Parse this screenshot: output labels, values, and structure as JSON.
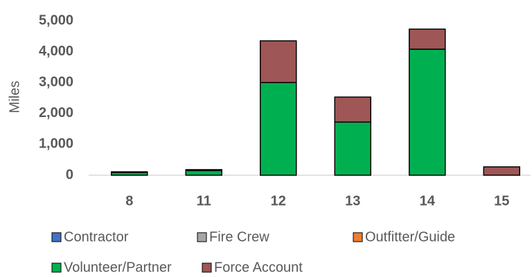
{
  "chart_data": {
    "type": "stacked_bar",
    "y_label": "Miles",
    "categories": [
      "8",
      "11",
      "12",
      "13",
      "14",
      "15"
    ],
    "series": [
      {
        "name": "Contractor",
        "color": "#4472c4",
        "values": [
          0,
          0,
          0,
          0,
          0,
          0
        ]
      },
      {
        "name": "Fire Crew",
        "color": "#a5a5a5",
        "values": [
          0,
          0,
          0,
          0,
          0,
          0
        ]
      },
      {
        "name": "Outfitter/Guide",
        "color": "#ed7d31",
        "values": [
          0,
          0,
          0,
          0,
          0,
          0
        ]
      },
      {
        "name": "Volunteer/Partner",
        "color": "#00b050",
        "values": [
          90,
          150,
          3000,
          1720,
          4080,
          0
        ]
      },
      {
        "name": "Force Account",
        "color": "#9e5656",
        "values": [
          20,
          30,
          1350,
          810,
          650,
          270
        ]
      }
    ],
    "ylim": [
      0,
      5000
    ],
    "yticks": [
      0,
      {
        "value": 1000,
        "label": "1,000"
      },
      {
        "value": 2000,
        "label": "2,000"
      },
      {
        "value": 3000,
        "label": "3,000"
      },
      {
        "value": 4000,
        "label": "4,000"
      },
      {
        "value": 5000,
        "label": "5,000"
      }
    ],
    "grid": false
  }
}
